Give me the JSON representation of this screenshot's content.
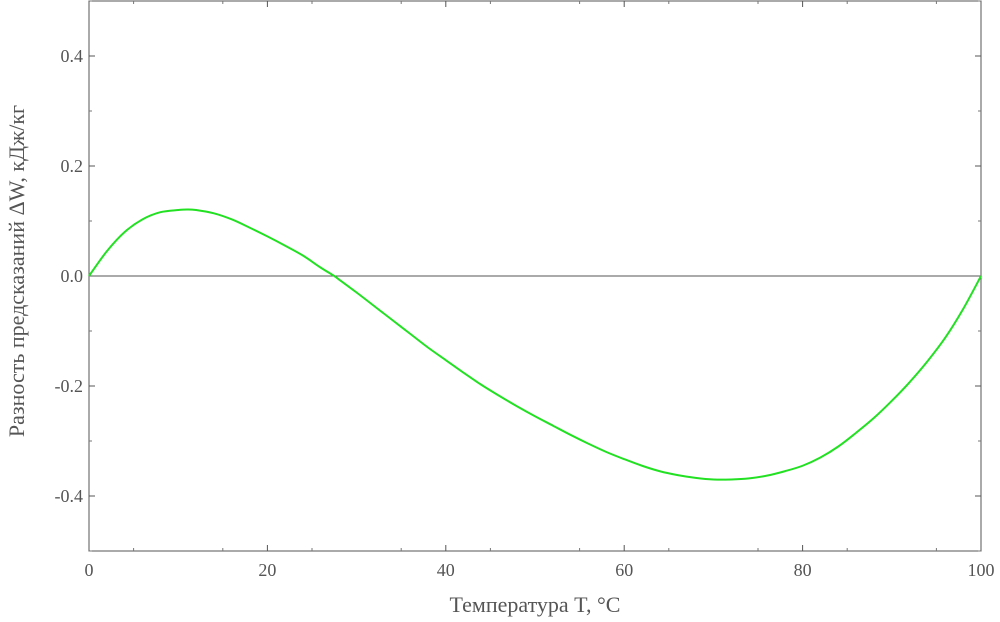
{
  "chart_data": {
    "type": "line",
    "title": "",
    "xlabel": "Температура T, °C",
    "ylabel": "Разность предсказаний ΔW, кДж/кг",
    "xlim": [
      0,
      100
    ],
    "ylim": [
      -0.5,
      0.5
    ],
    "x_ticks": [
      {
        "value": 0,
        "label": "0"
      },
      {
        "value": 20,
        "label": "20"
      },
      {
        "value": 40,
        "label": "40"
      },
      {
        "value": 60,
        "label": "60"
      },
      {
        "value": 80,
        "label": "80"
      },
      {
        "value": 100,
        "label": "100"
      }
    ],
    "y_ticks": [
      {
        "value": 0.4,
        "label": "0.4"
      },
      {
        "value": 0.2,
        "label": "0.2"
      },
      {
        "value": 0.0,
        "label": "0.0"
      },
      {
        "value": -0.2,
        "label": "-0.2"
      },
      {
        "value": -0.4,
        "label": "-0.4"
      }
    ],
    "grid": false,
    "zero_line": true,
    "series": [
      {
        "color": "#22e022",
        "x": [
          0,
          2,
          4,
          6,
          8,
          10,
          11,
          12,
          14,
          16,
          18,
          20,
          22,
          24,
          26,
          27.5,
          28,
          30,
          32,
          34,
          36,
          38,
          40,
          42,
          44,
          46,
          48,
          50,
          52,
          54,
          56,
          58,
          60,
          62,
          64,
          66,
          68,
          70,
          72,
          74,
          76,
          78,
          80,
          82,
          84,
          86,
          88,
          90,
          92,
          94,
          96,
          98,
          100
        ],
        "y": [
          0.0,
          0.045,
          0.08,
          0.103,
          0.116,
          0.12,
          0.121,
          0.12,
          0.114,
          0.103,
          0.088,
          0.072,
          0.055,
          0.037,
          0.015,
          0.0,
          -0.006,
          -0.03,
          -0.055,
          -0.08,
          -0.105,
          -0.13,
          -0.153,
          -0.176,
          -0.198,
          -0.218,
          -0.237,
          -0.255,
          -0.272,
          -0.289,
          -0.305,
          -0.32,
          -0.333,
          -0.345,
          -0.355,
          -0.362,
          -0.367,
          -0.37,
          -0.37,
          -0.368,
          -0.363,
          -0.355,
          -0.345,
          -0.33,
          -0.31,
          -0.285,
          -0.258,
          -0.227,
          -0.193,
          -0.155,
          -0.112,
          -0.06,
          0.0
        ]
      }
    ]
  }
}
